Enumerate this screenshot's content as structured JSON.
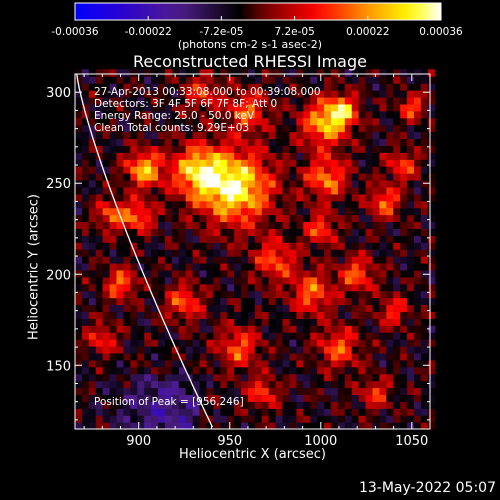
{
  "chart_data": {
    "type": "heatmap",
    "title": "Reconstructed RHESSI Image",
    "xlabel": "Heliocentric X (arcsec)",
    "ylabel": "Heliocentric Y (arcsec)",
    "xlim": [
      865,
      1060
    ],
    "ylim": [
      115,
      310
    ],
    "x_ticks": [
      900,
      950,
      1000,
      1050
    ],
    "y_ticks": [
      150,
      200,
      250,
      300
    ],
    "colorbar": {
      "ticks": [
        "-0.00036",
        "-0.00022",
        "-7.2e-05",
        "7.2e-05",
        "0.00022",
        "0.00036"
      ],
      "range": [
        -0.00036,
        0.00036
      ],
      "units": "(photons cm-2 s-1 asec-2)",
      "colors": [
        "#0000ff",
        "#000000",
        "#ff0000",
        "#ffff00",
        "#ffffff"
      ]
    },
    "annotations": [
      "27-Apr-2013 00:33:08.000 to 00:39:08.000",
      "Detectors: 3F 4F 5F 6F 7F 8F; Att 0",
      "Energy Range: 25.0 - 50.0 keV",
      "Clean     Total counts: 9.29E+03",
      "Position of Peak = [956,246]"
    ],
    "peak": [
      956,
      246
    ],
    "limb_color": "#ffffff"
  },
  "timestamp": "13-May-2022 05:07"
}
